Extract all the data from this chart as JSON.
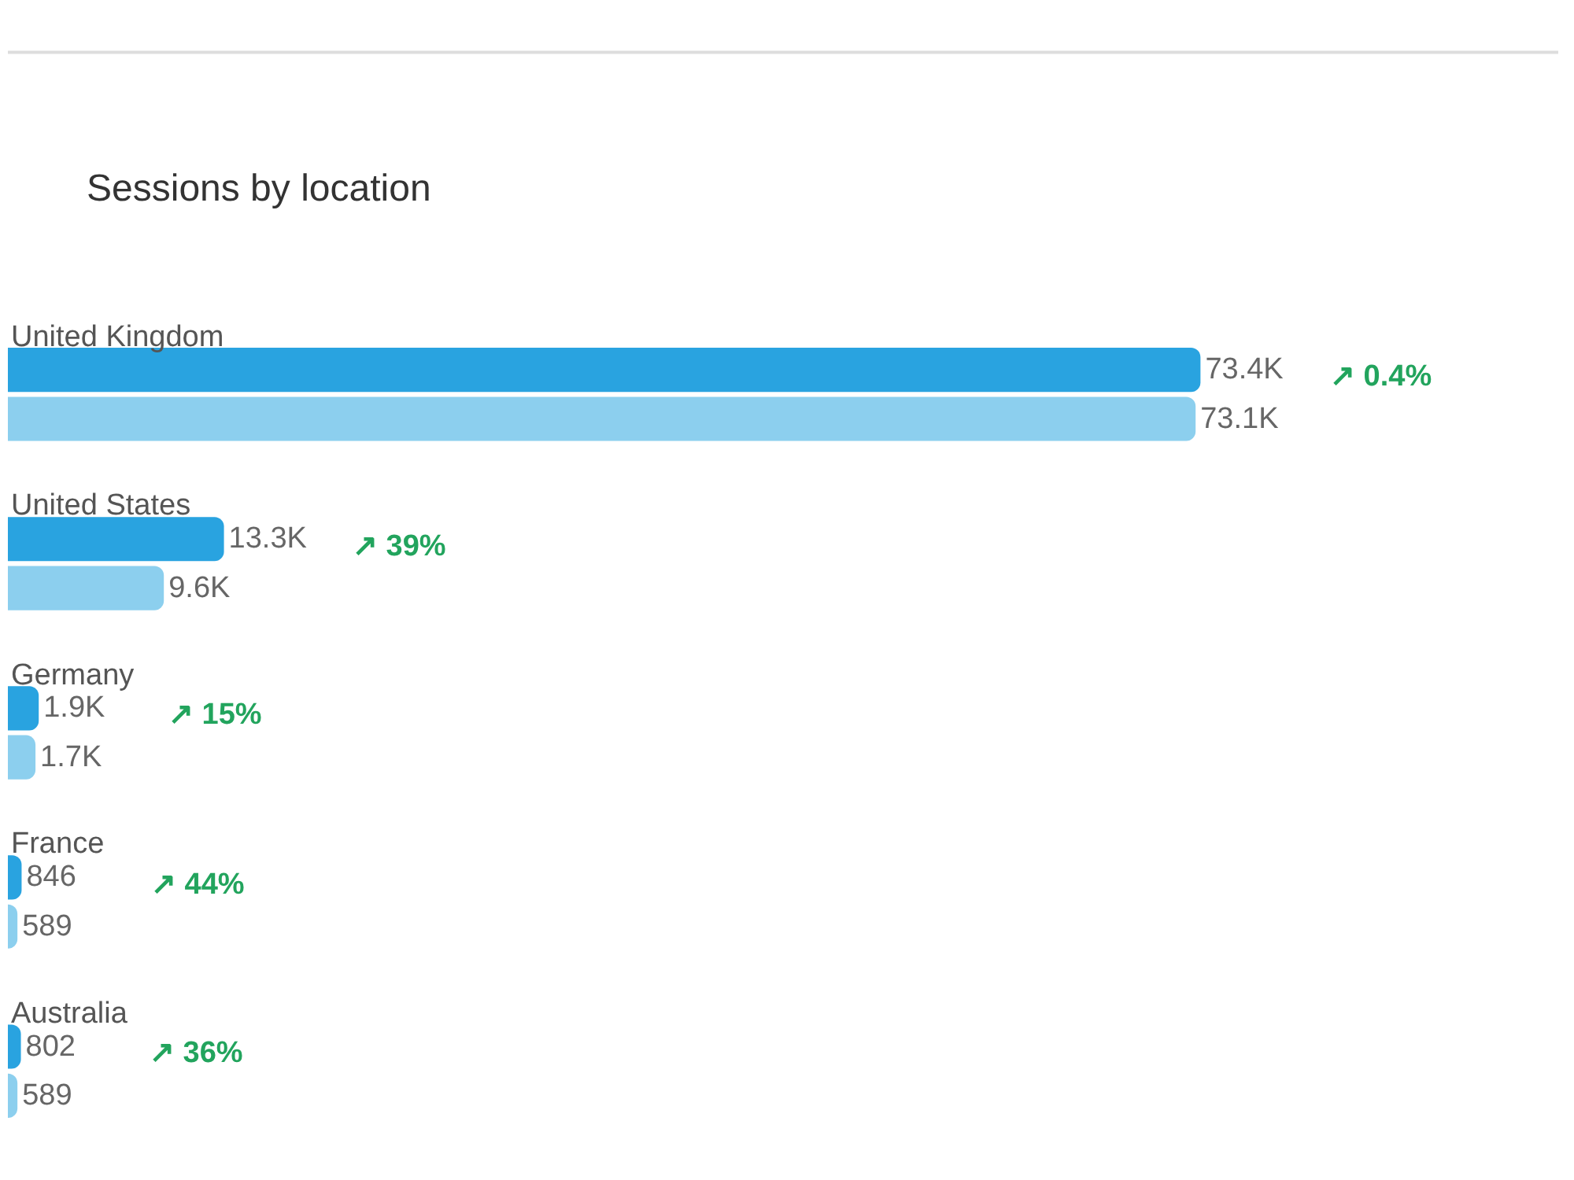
{
  "chart_data": {
    "type": "bar",
    "orientation": "horizontal",
    "title": "Sessions by location",
    "categories": [
      "United Kingdom",
      "United States",
      "Germany",
      "France",
      "Australia"
    ],
    "series": [
      {
        "color": "#29a3e0",
        "values": [
          73400,
          13300,
          1900,
          846,
          802
        ],
        "value_labels": [
          "73.4K",
          "13.3K",
          "1.9K",
          "846",
          "802"
        ]
      },
      {
        "color": "#8ccfee",
        "values": [
          73100,
          9600,
          1700,
          589,
          589
        ],
        "value_labels": [
          "73.1K",
          "9.6K",
          "1.7K",
          "589",
          "589"
        ]
      }
    ],
    "annotations": [
      "↗ 0.4%",
      "↗ 39%",
      "↗ 15%",
      "↗ 44%",
      "↗ 36%"
    ]
  }
}
